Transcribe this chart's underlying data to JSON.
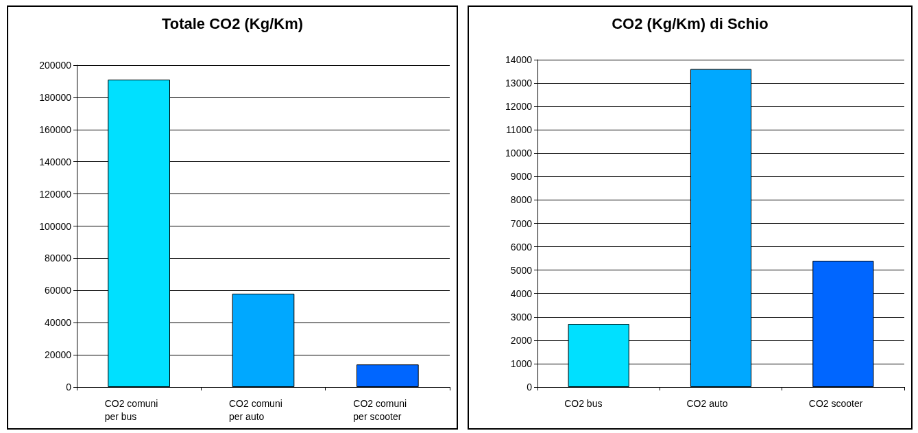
{
  "chart_data": [
    {
      "type": "bar",
      "title": "Totale CO2 (Kg/Km)",
      "categories": [
        "CO2 comuni per bus",
        "CO2 comuni per auto",
        "CO2 comuni per scooter"
      ],
      "values": [
        191000,
        58000,
        14000
      ],
      "colors": [
        "#00e0ff",
        "#00a8ff",
        "#0066ff"
      ],
      "ylim": [
        0,
        200000
      ],
      "yticks": [
        0,
        20000,
        40000,
        60000,
        80000,
        100000,
        120000,
        140000,
        160000,
        180000,
        200000
      ],
      "grid": "y"
    },
    {
      "type": "bar",
      "title": "CO2 (Kg/Km) di Schio",
      "categories": [
        "CO2 bus",
        "CO2 auto",
        "CO2 scooter"
      ],
      "values": [
        2700,
        13600,
        5400
      ],
      "colors": [
        "#00e0ff",
        "#00a8ff",
        "#0066ff"
      ],
      "ylim": [
        0,
        14000
      ],
      "yticks": [
        0,
        1000,
        2000,
        3000,
        4000,
        5000,
        6000,
        7000,
        8000,
        9000,
        10000,
        11000,
        12000,
        13000,
        14000
      ],
      "grid": "y"
    }
  ]
}
